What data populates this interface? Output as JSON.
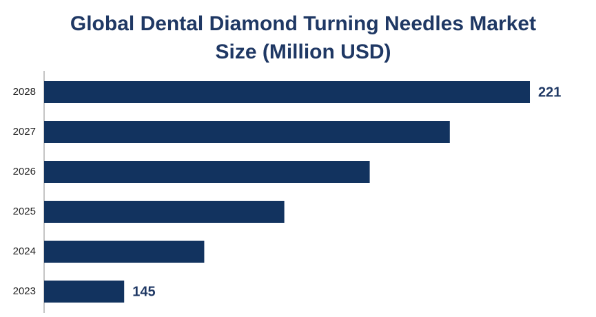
{
  "chart_data": {
    "type": "bar",
    "orientation": "horizontal",
    "title": "Global Dental Diamond Turning Needles Market Size (Million USD)",
    "categories": [
      "2028",
      "2027",
      "2026",
      "2025",
      "2024",
      "2023"
    ],
    "values": [
      221,
      206,
      191,
      175,
      160,
      145
    ],
    "value_labels": [
      "221",
      null,
      null,
      null,
      null,
      "145"
    ],
    "color": "#12335f",
    "xlim": [
      130,
      225
    ]
  }
}
